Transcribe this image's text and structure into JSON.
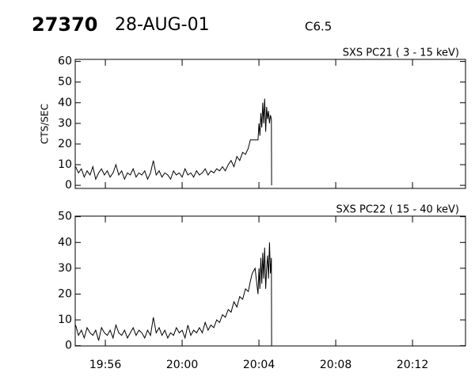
{
  "header": {
    "id": "27370",
    "date": "28-AUG-01",
    "class": "C6.5"
  },
  "chart_data": [
    {
      "type": "line",
      "title": "SXS PC21  (  3 - 15 keV)",
      "ylabel": "CTS/SEC",
      "xlim": [
        54.43,
        74.76
      ],
      "xticks": [
        56,
        60,
        64,
        68,
        72
      ],
      "ylim": [
        -1.5,
        61
      ],
      "yticks": [
        0,
        10,
        20,
        30,
        40,
        50,
        60
      ],
      "x": [
        54.45,
        54.6,
        54.75,
        54.9,
        55.05,
        55.2,
        55.35,
        55.5,
        55.65,
        55.8,
        55.95,
        56.1,
        56.25,
        56.4,
        56.55,
        56.7,
        56.85,
        57.0,
        57.15,
        57.3,
        57.45,
        57.6,
        57.75,
        57.9,
        58.05,
        58.2,
        58.35,
        58.5,
        58.65,
        58.8,
        58.95,
        59.1,
        59.25,
        59.4,
        59.55,
        59.7,
        59.85,
        60.0,
        60.15,
        60.3,
        60.45,
        60.6,
        60.75,
        60.9,
        61.05,
        61.2,
        61.35,
        61.5,
        61.65,
        61.8,
        61.95,
        62.1,
        62.25,
        62.4,
        62.55,
        62.7,
        62.85,
        63.0,
        63.15,
        63.3,
        63.45,
        63.55,
        63.65,
        63.8,
        63.95,
        64.0,
        64.05,
        64.1,
        64.15,
        64.2,
        64.25,
        64.3,
        64.35,
        64.4,
        64.45,
        64.5,
        64.55,
        64.6,
        64.65,
        64.66
      ],
      "series": [
        {
          "color": "#000000",
          "values": [
            9,
            6,
            8,
            4,
            7,
            5,
            9,
            3,
            6,
            8,
            5,
            7,
            4,
            6,
            10,
            5,
            7,
            3,
            6,
            5,
            8,
            4,
            6,
            5,
            7,
            3,
            6,
            12,
            5,
            7,
            4,
            6,
            5,
            3,
            7,
            5,
            6,
            4,
            8,
            5,
            6,
            4,
            7,
            5,
            6,
            8,
            5,
            7,
            6,
            8,
            7,
            9,
            7,
            10,
            12,
            9,
            14,
            12,
            16,
            15,
            18,
            22,
            22,
            22,
            22,
            30,
            24,
            35,
            28,
            40,
            30,
            42,
            26,
            38,
            32,
            36,
            30,
            34,
            32,
            0
          ]
        }
      ]
    },
    {
      "type": "line",
      "title": "SXS PC22  ( 15 - 40 keV)",
      "xlim": [
        54.43,
        74.76
      ],
      "xticks": [
        {
          "value": 56,
          "label": "19:56"
        },
        {
          "value": 60,
          "label": "20:00"
        },
        {
          "value": 64,
          "label": "20:04"
        },
        {
          "value": 68,
          "label": "20:08"
        },
        {
          "value": 72,
          "label": "20:12"
        }
      ],
      "ylim": [
        -0.1,
        50.2
      ],
      "yticks": [
        0,
        10,
        20,
        30,
        40,
        50
      ],
      "x": [
        54.45,
        54.6,
        54.75,
        54.9,
        55.05,
        55.2,
        55.35,
        55.5,
        55.65,
        55.8,
        55.95,
        56.1,
        56.25,
        56.4,
        56.55,
        56.7,
        56.85,
        57.0,
        57.15,
        57.3,
        57.45,
        57.6,
        57.75,
        57.9,
        58.05,
        58.2,
        58.35,
        58.5,
        58.65,
        58.8,
        58.95,
        59.1,
        59.25,
        59.4,
        59.55,
        59.7,
        59.85,
        60.0,
        60.15,
        60.3,
        60.45,
        60.6,
        60.75,
        60.9,
        61.05,
        61.2,
        61.35,
        61.5,
        61.65,
        61.8,
        61.95,
        62.1,
        62.25,
        62.4,
        62.55,
        62.7,
        62.85,
        63.0,
        63.15,
        63.3,
        63.45,
        63.55,
        63.65,
        63.8,
        63.95,
        64.0,
        64.05,
        64.1,
        64.15,
        64.2,
        64.25,
        64.3,
        64.35,
        64.4,
        64.45,
        64.5,
        64.55,
        64.6,
        64.65,
        64.66
      ],
      "series": [
        {
          "color": "#000000",
          "values": [
            8,
            4,
            6,
            3,
            7,
            5,
            4,
            6,
            2,
            7,
            5,
            4,
            6,
            3,
            8,
            5,
            4,
            6,
            3,
            5,
            7,
            4,
            6,
            5,
            3,
            6,
            4,
            11,
            5,
            7,
            4,
            6,
            3,
            5,
            4,
            7,
            5,
            6,
            3,
            8,
            4,
            6,
            5,
            7,
            5,
            9,
            6,
            8,
            7,
            10,
            9,
            12,
            11,
            14,
            13,
            17,
            15,
            19,
            18,
            22,
            21,
            25,
            28,
            30,
            20,
            30,
            22,
            34,
            24,
            36,
            26,
            38,
            22,
            30,
            35,
            26,
            40,
            28,
            34,
            0
          ]
        }
      ]
    }
  ]
}
